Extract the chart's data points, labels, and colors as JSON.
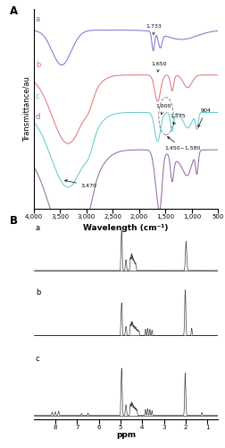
{
  "panel_A": {
    "title": "A",
    "xlabel": "Wavelength (cm⁻¹)",
    "ylabel": "Transmittance/au",
    "line_colors": [
      "#7070cc",
      "#e07070",
      "#60c8c8",
      "#9060a0"
    ],
    "line_labels": [
      "a",
      "b",
      "c",
      "d"
    ],
    "xticks": [
      4000,
      3500,
      3000,
      2500,
      2000,
      1500,
      1000,
      500
    ],
    "xticklabels": [
      "4,000",
      "3,500",
      "3,000",
      "2,500",
      "2,000",
      "1,500",
      "1,000",
      "500"
    ]
  },
  "panel_B": {
    "title": "B",
    "xlabel": "ppm",
    "line_labels": [
      "a",
      "b",
      "c"
    ],
    "line_color": "#444444",
    "xticks": [
      8,
      7,
      6,
      5,
      4,
      3,
      2,
      1
    ],
    "xticklabels": [
      "8",
      "7",
      "6",
      "5",
      "4",
      "3",
      "2",
      "1"
    ]
  },
  "background_color": "#ffffff",
  "font_size": 6.5
}
